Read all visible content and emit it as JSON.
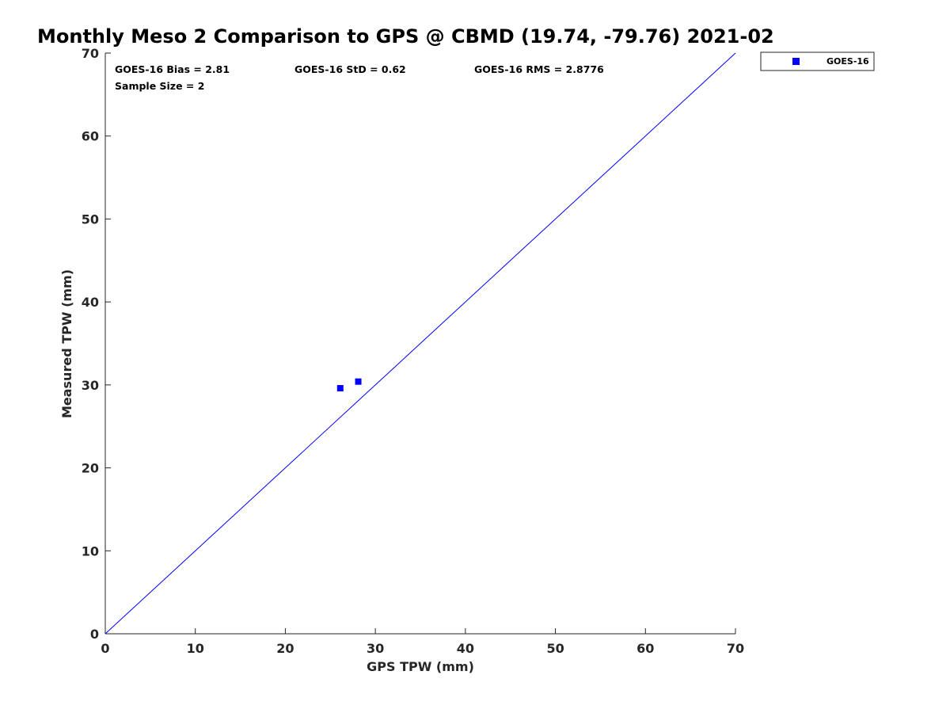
{
  "chart_data": {
    "type": "scatter",
    "title": "Monthly Meso 2 Comparison to GPS @ CBMD (19.74, -79.76) 2021-02",
    "xlabel": "GPS TPW (mm)",
    "ylabel": "Measured TPW (mm)",
    "xlim": [
      0,
      70
    ],
    "ylim": [
      0,
      70
    ],
    "xticks": [
      0,
      10,
      20,
      30,
      40,
      50,
      60,
      70
    ],
    "yticks": [
      0,
      10,
      20,
      30,
      40,
      50,
      60,
      70
    ],
    "xtick_labels": [
      "0",
      "10",
      "20",
      "30",
      "40",
      "50",
      "60",
      "70"
    ],
    "ytick_labels": [
      "0",
      "10",
      "20",
      "30",
      "40",
      "50",
      "60",
      "70"
    ],
    "grid": false,
    "legend_position": "outside-top-right",
    "series": [
      {
        "name": "GOES-16",
        "color": "#0000ff",
        "marker": "square",
        "points": [
          {
            "x": 26.1,
            "y": 29.6
          },
          {
            "x": 28.1,
            "y": 30.4
          }
        ]
      }
    ],
    "reference_line": {
      "type": "one-to-one",
      "color": "#0000ff",
      "from": [
        0,
        0
      ],
      "to": [
        70,
        70
      ]
    },
    "annotations": {
      "bias": "GOES-16 Bias = 2.81",
      "std": "GOES-16 StD = 0.62",
      "rms": "GOES-16 RMS = 2.8776",
      "sample_size": "Sample Size = 2"
    }
  }
}
